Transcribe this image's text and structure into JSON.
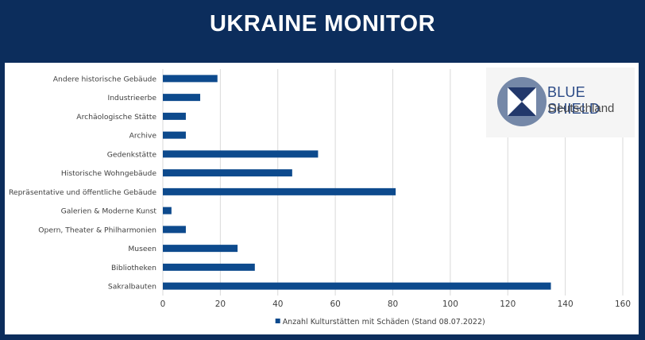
{
  "header": {
    "title": "UKRAINE MONITOR"
  },
  "logo": {
    "line1": "BLUE SHIELD",
    "line2": "Deutschland"
  },
  "colors": {
    "background": "#0c2d5c",
    "bar": "#0d4a8d",
    "grid": "#d9d9d9",
    "text": "#404040"
  },
  "chart_data": {
    "type": "bar",
    "orientation": "horizontal",
    "categories": [
      "Andere historische Gebäude",
      "Industrieerbe",
      "Archäologische Stätte",
      "Archive",
      "Gedenkstätte",
      "Historische Wohngebäude",
      "Repräsentative und öffentliche Gebäude",
      "Galerien & Moderne Kunst",
      "Opern, Theater & Philharmonien",
      "Museen",
      "Bibliotheken",
      "Sakralbauten"
    ],
    "series": [
      {
        "name": "Anzahl Kulturstätten mit Schäden (Stand 08.07.2022)",
        "values": [
          19,
          13,
          8,
          8,
          54,
          45,
          81,
          3,
          8,
          26,
          32,
          135
        ]
      }
    ],
    "xlim": [
      0,
      160
    ],
    "xticks": [
      "0",
      "20",
      "40",
      "60",
      "80",
      "100",
      "120",
      "140",
      "160"
    ],
    "grid": true,
    "legend_position": "bottom"
  }
}
